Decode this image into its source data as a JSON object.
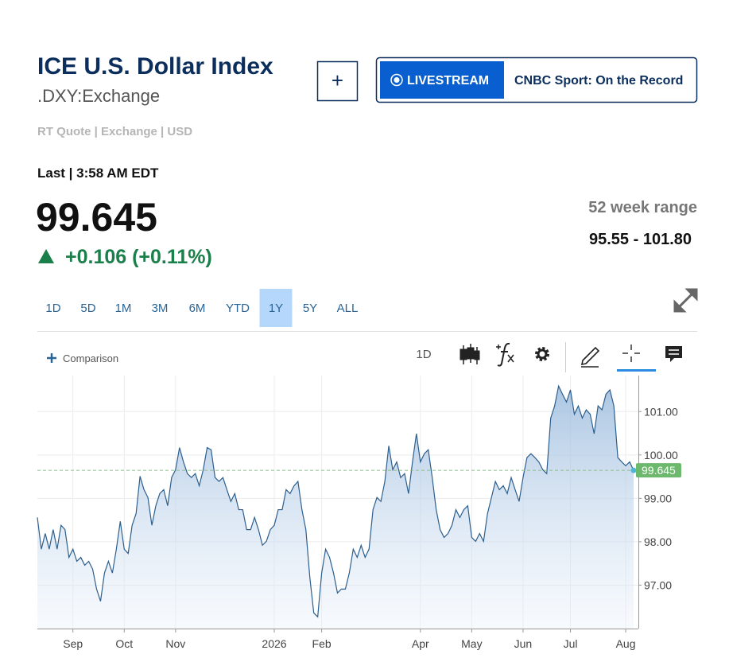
{
  "header": {
    "title": "ICE U.S. Dollar Index",
    "symbol": ".DXY:Exchange",
    "quote_info": "RT Quote | Exchange | USD",
    "add_button": "+",
    "livestream": "LIVESTREAM",
    "show": "CNBC Sport: On the Record"
  },
  "quote": {
    "last": "Last | 3:58 AM EDT",
    "price": "99.645",
    "change": "+0.106 (+0.11%)",
    "range_label": "52 week range",
    "range": "95.55 - 101.80"
  },
  "time_ranges": {
    "options": [
      "1D",
      "5D",
      "1M",
      "3M",
      "6M",
      "YTD",
      "1Y",
      "5Y",
      "ALL"
    ],
    "selected": "1Y"
  },
  "toolbar": {
    "comparison": "Comparison",
    "interval": "1D"
  },
  "chart_data": {
    "type": "area",
    "color": "#2c5f8e",
    "values": [
      98.56,
      97.83,
      98.19,
      97.83,
      98.28,
      97.83,
      98.38,
      98.28,
      97.64,
      97.83,
      97.55,
      97.64,
      97.46,
      97.55,
      97.37,
      96.91,
      96.63,
      97.28,
      97.55,
      97.28,
      97.83,
      98.47,
      97.83,
      97.73,
      98.38,
      98.65,
      99.51,
      99.2,
      99.02,
      98.38,
      98.83,
      99.11,
      99.2,
      98.83,
      99.48,
      99.66,
      100.17,
      99.84,
      99.57,
      99.48,
      99.57,
      99.29,
      99.66,
      100.17,
      100.12,
      99.48,
      99.39,
      99.48,
      99.2,
      98.93,
      99.11,
      98.74,
      98.74,
      98.28,
      98.28,
      98.56,
      98.28,
      97.92,
      98.01,
      98.28,
      98.38,
      98.74,
      98.74,
      99.2,
      99.11,
      99.29,
      99.39,
      98.74,
      98.28,
      97.18,
      96.36,
      96.27,
      97.28,
      97.83,
      97.64,
      97.28,
      96.82,
      96.91,
      96.91,
      97.28,
      97.83,
      97.64,
      97.92,
      97.64,
      97.83,
      98.74,
      99.02,
      98.93,
      99.39,
      100.21,
      99.66,
      99.84,
      99.48,
      99.57,
      99.11,
      99.84,
      100.49,
      99.84,
      100.03,
      100.12,
      99.48,
      98.74,
      98.28,
      98.1,
      98.19,
      98.38,
      98.74,
      98.56,
      98.74,
      98.83,
      98.1,
      98.01,
      98.19,
      98.01,
      98.65,
      99.02,
      99.39,
      99.2,
      99.29,
      99.11,
      99.48,
      99.2,
      98.93,
      99.48,
      99.94,
      100.03,
      99.94,
      99.84,
      99.66,
      99.57,
      100.85,
      101.13,
      101.59,
      101.4,
      101.22,
      101.5,
      100.94,
      101.13,
      100.85,
      101.04,
      100.94,
      100.49,
      101.13,
      101.04,
      101.4,
      101.5,
      101.13,
      99.94,
      99.84,
      99.75,
      99.84,
      99.645
    ],
    "xlim": [
      0,
      151
    ],
    "xticks": [
      {
        "value": 9,
        "label": "Sep"
      },
      {
        "value": 22,
        "label": "Oct"
      },
      {
        "value": 35,
        "label": "Nov"
      },
      {
        "value": 60,
        "label": "2026"
      },
      {
        "value": 72,
        "label": "Feb"
      },
      {
        "value": 97,
        "label": "Apr"
      },
      {
        "value": 110,
        "label": "May"
      },
      {
        "value": 123,
        "label": "Jun"
      },
      {
        "value": 135,
        "label": "Jul"
      },
      {
        "value": 149,
        "label": "Aug"
      }
    ],
    "ylim": [
      96,
      101.83
    ],
    "yticks": [
      {
        "value": 97,
        "label": "97.00"
      },
      {
        "value": 98,
        "label": "98.00"
      },
      {
        "value": 99,
        "label": "99.00"
      },
      {
        "value": 100,
        "label": "100.00"
      },
      {
        "value": 101,
        "label": "101.00"
      }
    ],
    "grid": true
  }
}
